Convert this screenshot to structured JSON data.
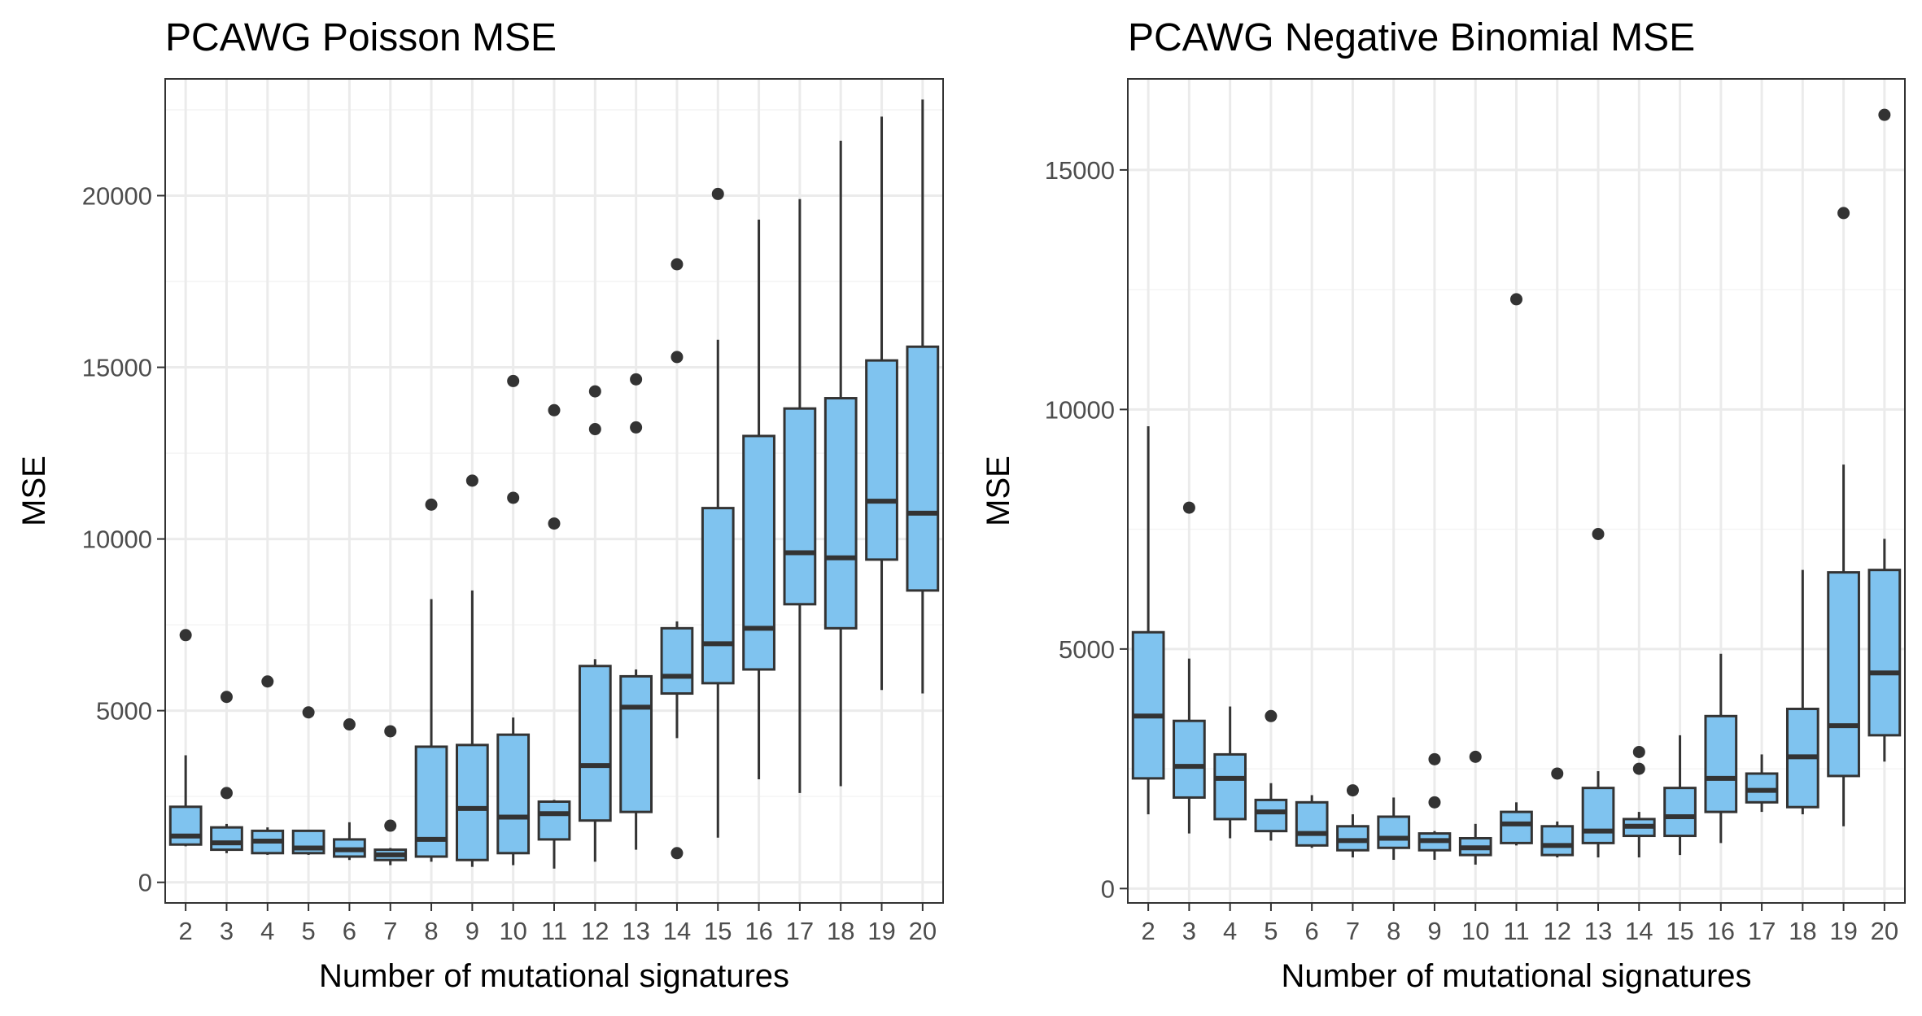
{
  "colors": {
    "fill": "#7fc3ef",
    "stroke": "#333333",
    "grid_major": "#ebebeb",
    "grid_minor": "#f4f4f4",
    "panel_border": "#333333"
  },
  "chart_data": [
    {
      "type": "boxplot",
      "title": "PCAWG Poisson MSE",
      "xlabel": "Number of mutational signatures",
      "ylabel": "MSE",
      "ylim": [
        -600,
        23400
      ],
      "y_ticks": [
        0,
        5000,
        10000,
        15000,
        20000
      ],
      "grid": true,
      "categories": [
        "2",
        "3",
        "4",
        "5",
        "6",
        "7",
        "8",
        "9",
        "10",
        "11",
        "12",
        "13",
        "14",
        "15",
        "16",
        "17",
        "18",
        "19",
        "20"
      ],
      "boxes": [
        {
          "x": "2",
          "low": 1050,
          "q1": 1100,
          "median": 1350,
          "q3": 2200,
          "high": 3700,
          "outliers": [
            7200
          ]
        },
        {
          "x": "3",
          "low": 850,
          "q1": 950,
          "median": 1150,
          "q3": 1600,
          "high": 1700,
          "outliers": [
            5400,
            2600
          ]
        },
        {
          "x": "4",
          "low": 800,
          "q1": 850,
          "median": 1200,
          "q3": 1500,
          "high": 1600,
          "outliers": [
            5850
          ]
        },
        {
          "x": "5",
          "low": 800,
          "q1": 850,
          "median": 1000,
          "q3": 1500,
          "high": 1500,
          "outliers": [
            4950
          ]
        },
        {
          "x": "6",
          "low": 650,
          "q1": 750,
          "median": 950,
          "q3": 1250,
          "high": 1750,
          "outliers": [
            4600
          ]
        },
        {
          "x": "7",
          "low": 500,
          "q1": 650,
          "median": 800,
          "q3": 950,
          "high": 1000,
          "outliers": [
            4400,
            1650
          ]
        },
        {
          "x": "8",
          "low": 600,
          "q1": 750,
          "median": 1250,
          "q3": 3950,
          "high": 8250,
          "outliers": [
            11000
          ]
        },
        {
          "x": "9",
          "low": 450,
          "q1": 650,
          "median": 2150,
          "q3": 4000,
          "high": 8500,
          "outliers": [
            11700
          ]
        },
        {
          "x": "10",
          "low": 500,
          "q1": 850,
          "median": 1900,
          "q3": 4300,
          "high": 4800,
          "outliers": [
            14600,
            11200
          ]
        },
        {
          "x": "11",
          "low": 400,
          "q1": 1250,
          "median": 2000,
          "q3": 2350,
          "high": 2400,
          "outliers": [
            13750,
            10450
          ]
        },
        {
          "x": "12",
          "low": 600,
          "q1": 1800,
          "median": 3400,
          "q3": 6300,
          "high": 6500,
          "outliers": [
            14300,
            13200
          ]
        },
        {
          "x": "13",
          "low": 950,
          "q1": 2050,
          "median": 5100,
          "q3": 6000,
          "high": 6200,
          "outliers": [
            14650,
            13250
          ]
        },
        {
          "x": "14",
          "low": 4200,
          "q1": 5500,
          "median": 6000,
          "q3": 7400,
          "high": 7600,
          "outliers": [
            18000,
            15300,
            850
          ]
        },
        {
          "x": "15",
          "low": 1300,
          "q1": 5800,
          "median": 6950,
          "q3": 10900,
          "high": 15800,
          "outliers": [
            20050
          ]
        },
        {
          "x": "16",
          "low": 3000,
          "q1": 6200,
          "median": 7400,
          "q3": 13000,
          "high": 19300,
          "outliers": []
        },
        {
          "x": "17",
          "low": 2600,
          "q1": 8100,
          "median": 9600,
          "q3": 13800,
          "high": 19900,
          "outliers": []
        },
        {
          "x": "18",
          "low": 2800,
          "q1": 7400,
          "median": 9450,
          "q3": 14100,
          "high": 21600,
          "outliers": []
        },
        {
          "x": "19",
          "low": 5600,
          "q1": 9400,
          "median": 11100,
          "q3": 15200,
          "high": 22300,
          "outliers": []
        },
        {
          "x": "20",
          "low": 5500,
          "q1": 8500,
          "median": 10750,
          "q3": 15600,
          "high": 22800,
          "outliers": []
        }
      ]
    },
    {
      "type": "boxplot",
      "title": "PCAWG Negative Binomial MSE",
      "xlabel": "Number of mutational signatures",
      "ylabel": "MSE",
      "ylim": [
        -300,
        16900
      ],
      "y_ticks": [
        0,
        5000,
        10000,
        15000
      ],
      "grid": true,
      "categories": [
        "2",
        "3",
        "4",
        "5",
        "6",
        "7",
        "8",
        "9",
        "10",
        "11",
        "12",
        "13",
        "14",
        "15",
        "16",
        "17",
        "18",
        "19",
        "20"
      ],
      "boxes": [
        {
          "x": "2",
          "low": 1550,
          "q1": 2300,
          "median": 3600,
          "q3": 5350,
          "high": 9650,
          "outliers": []
        },
        {
          "x": "3",
          "low": 1150,
          "q1": 1900,
          "median": 2550,
          "q3": 3500,
          "high": 4800,
          "outliers": [
            7950
          ]
        },
        {
          "x": "4",
          "low": 1050,
          "q1": 1450,
          "median": 2300,
          "q3": 2800,
          "high": 3800,
          "outliers": []
        },
        {
          "x": "5",
          "low": 1000,
          "q1": 1200,
          "median": 1600,
          "q3": 1850,
          "high": 2200,
          "outliers": [
            3600
          ]
        },
        {
          "x": "6",
          "low": 850,
          "q1": 900,
          "median": 1150,
          "q3": 1800,
          "high": 1950,
          "outliers": []
        },
        {
          "x": "7",
          "low": 650,
          "q1": 800,
          "median": 1000,
          "q3": 1300,
          "high": 1550,
          "outliers": [
            2050
          ]
        },
        {
          "x": "8",
          "low": 600,
          "q1": 850,
          "median": 1050,
          "q3": 1500,
          "high": 1900,
          "outliers": []
        },
        {
          "x": "9",
          "low": 600,
          "q1": 800,
          "median": 1000,
          "q3": 1150,
          "high": 1200,
          "outliers": [
            2700,
            1800
          ]
        },
        {
          "x": "10",
          "low": 500,
          "q1": 700,
          "median": 850,
          "q3": 1050,
          "high": 1350,
          "outliers": [
            2750
          ]
        },
        {
          "x": "11",
          "low": 900,
          "q1": 950,
          "median": 1350,
          "q3": 1600,
          "high": 1800,
          "outliers": [
            12300
          ]
        },
        {
          "x": "12",
          "low": 650,
          "q1": 700,
          "median": 900,
          "q3": 1300,
          "high": 1400,
          "outliers": [
            2400
          ]
        },
        {
          "x": "13",
          "low": 650,
          "q1": 950,
          "median": 1200,
          "q3": 2100,
          "high": 2450,
          "outliers": [
            7400
          ]
        },
        {
          "x": "14",
          "low": 650,
          "q1": 1100,
          "median": 1300,
          "q3": 1450,
          "high": 1600,
          "outliers": [
            2850,
            2500
          ]
        },
        {
          "x": "15",
          "low": 700,
          "q1": 1100,
          "median": 1500,
          "q3": 2100,
          "high": 3200,
          "outliers": []
        },
        {
          "x": "16",
          "low": 950,
          "q1": 1600,
          "median": 2300,
          "q3": 3600,
          "high": 4900,
          "outliers": []
        },
        {
          "x": "17",
          "low": 1600,
          "q1": 1800,
          "median": 2050,
          "q3": 2400,
          "high": 2800,
          "outliers": []
        },
        {
          "x": "18",
          "low": 1550,
          "q1": 1700,
          "median": 2750,
          "q3": 3750,
          "high": 6650,
          "outliers": []
        },
        {
          "x": "19",
          "low": 1300,
          "q1": 2350,
          "median": 3400,
          "q3": 6600,
          "high": 8850,
          "outliers": [
            14100
          ]
        },
        {
          "x": "20",
          "low": 2650,
          "q1": 3200,
          "median": 4500,
          "q3": 6650,
          "high": 7300,
          "outliers": [
            16150
          ]
        }
      ]
    }
  ]
}
